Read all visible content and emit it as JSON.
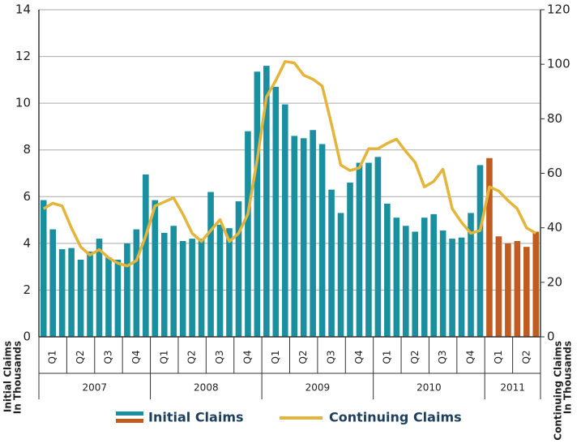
{
  "chart_data": {
    "type": "bar_line",
    "quarter_labels": [
      "Q1",
      "Q2",
      "Q3",
      "Q4",
      "Q1",
      "Q2",
      "Q3",
      "Q4",
      "Q1",
      "Q2",
      "Q3",
      "Q4",
      "Q1",
      "Q2",
      "Q3",
      "Q4",
      "Q1",
      "Q2"
    ],
    "year_labels": [
      "2007",
      "2008",
      "2009",
      "2010",
      "2011"
    ],
    "y_axis_label": [
      "Initial Claims",
      "In Thousands"
    ],
    "y2_axis_label": [
      "Continuing Claims",
      "In Thousands"
    ],
    "ylim": [
      0,
      14
    ],
    "yticks": [
      0,
      2,
      4,
      6,
      8,
      10,
      12,
      14
    ],
    "y2lim": [
      0,
      120
    ],
    "y2ticks": [
      0,
      20,
      40,
      60,
      80,
      100,
      120
    ],
    "grid": true,
    "series": [
      {
        "name": "Initial Claims",
        "type": "bar",
        "axis": "y",
        "color": "#1a8fa0",
        "colors": [
          "#1a8fa0",
          "#1a8fa0",
          "#1a8fa0",
          "#1a8fa0",
          "#1a8fa0",
          "#1a8fa0",
          "#1a8fa0",
          "#1a8fa0",
          "#1a8fa0",
          "#1a8fa0",
          "#1a8fa0",
          "#1a8fa0",
          "#1a8fa0",
          "#1a8fa0",
          "#1a8fa0",
          "#1a8fa0",
          "#1a8fa0",
          "#1a8fa0",
          "#1a8fa0",
          "#1a8fa0",
          "#1a8fa0",
          "#1a8fa0",
          "#1a8fa0",
          "#1a8fa0",
          "#1a8fa0",
          "#1a8fa0",
          "#1a8fa0",
          "#1a8fa0",
          "#1a8fa0",
          "#1a8fa0",
          "#1a8fa0",
          "#1a8fa0",
          "#1a8fa0",
          "#1a8fa0",
          "#1a8fa0",
          "#1a8fa0",
          "#1a8fa0",
          "#1a8fa0",
          "#1a8fa0",
          "#1a8fa0",
          "#1a8fa0",
          "#1a8fa0",
          "#1a8fa0",
          "#1a8fa0",
          "#1a8fa0",
          "#1a8fa0",
          "#1a8fa0",
          "#1a8fa0",
          "#c25b20",
          "#c25b20",
          "#c25b20",
          "#c25b20",
          "#c25b20",
          "#c25b20"
        ],
        "legend_colors": [
          "#1a8fa0",
          "#c25b20"
        ],
        "values": [
          5.85,
          4.6,
          3.75,
          3.8,
          3.3,
          3.65,
          4.2,
          3.4,
          3.3,
          4.0,
          4.6,
          6.95,
          5.85,
          4.45,
          4.75,
          4.1,
          4.2,
          4.2,
          6.2,
          4.8,
          4.65,
          5.8,
          8.8,
          11.35,
          11.6,
          10.7,
          9.95,
          8.6,
          8.5,
          8.85,
          8.25,
          6.3,
          5.3,
          6.6,
          7.45,
          7.45,
          7.7,
          5.7,
          5.1,
          4.75,
          4.5,
          5.1,
          5.25,
          4.55,
          4.2,
          4.25,
          5.3,
          7.35,
          7.65,
          4.3,
          4.0,
          4.1,
          3.85,
          4.5
        ]
      },
      {
        "name": "Continuing Claims",
        "type": "line",
        "axis": "y2",
        "color": "#e3b53a",
        "values": [
          47,
          49,
          48,
          40,
          33,
          30,
          32,
          29,
          27,
          26,
          28,
          37,
          48,
          49.5,
          51,
          45,
          38,
          35,
          39,
          43,
          35,
          38,
          45,
          65,
          88,
          94,
          101,
          100.5,
          96,
          94.5,
          92,
          78,
          63,
          61,
          62,
          69,
          69,
          71,
          72.5,
          68,
          64,
          55,
          57,
          61.5,
          47,
          42,
          38,
          39,
          55,
          53.5,
          50,
          47,
          40,
          38
        ]
      }
    ]
  }
}
